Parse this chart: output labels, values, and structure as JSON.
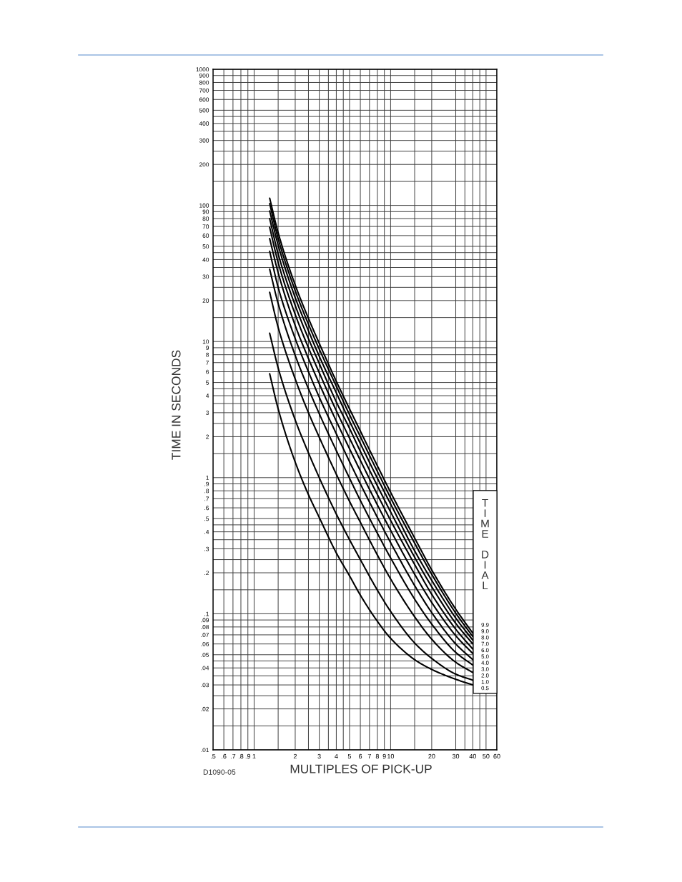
{
  "chart_data": {
    "type": "line",
    "xlabel": "MULTIPLES OF PICK-UP",
    "ylabel": "TIME IN SECONDS",
    "legend_title": "TIME DIAL",
    "legend": "bottom right",
    "log": "xy",
    "grid": true,
    "line_style": "solid",
    "xlim": [
      0.5,
      60
    ],
    "ylim": [
      0.01,
      1000
    ],
    "xticks": [
      {
        "value": 0.5,
        "label": ".5"
      },
      {
        "value": 0.6,
        "label": ".6"
      },
      {
        "value": 0.7,
        "label": ".7"
      },
      {
        "value": 0.8,
        "label": ".8"
      },
      {
        "value": 0.9,
        "label": ".9"
      },
      1,
      {
        "value": 1.5,
        "label": null
      },
      2,
      {
        "value": 2.5,
        "label": null
      },
      3,
      {
        "value": 3.5,
        "label": null
      },
      4,
      {
        "value": 4.5,
        "label": null
      },
      5,
      6,
      7,
      8,
      9,
      10,
      {
        "value": 15,
        "label": null
      },
      20,
      30,
      {
        "value": 35,
        "label": null
      },
      40,
      {
        "value": 45,
        "label": null
      },
      50,
      60
    ],
    "yticks": [
      {
        "value": 0.01,
        "label": ".01"
      },
      {
        "value": 0.015,
        "label": null
      },
      {
        "value": 0.02,
        "label": ".02"
      },
      {
        "value": 0.025,
        "label": null
      },
      {
        "value": 0.03,
        "label": ".03"
      },
      {
        "value": 0.035,
        "label": null
      },
      {
        "value": 0.04,
        "label": ".04"
      },
      {
        "value": 0.045,
        "label": null
      },
      {
        "value": 0.05,
        "label": ".05"
      },
      {
        "value": 0.06,
        "label": ".06"
      },
      {
        "value": 0.07,
        "label": ".07"
      },
      {
        "value": 0.08,
        "label": ".08"
      },
      {
        "value": 0.09,
        "label": ".09"
      },
      {
        "value": 0.1,
        "label": ".1"
      },
      {
        "value": 0.15,
        "label": null
      },
      {
        "value": 0.2,
        "label": ".2"
      },
      {
        "value": 0.25,
        "label": null
      },
      {
        "value": 0.3,
        "label": ".3"
      },
      {
        "value": 0.35,
        "label": null
      },
      {
        "value": 0.4,
        "label": ".4"
      },
      {
        "value": 0.45,
        "label": null
      },
      {
        "value": 0.5,
        "label": ".5"
      },
      {
        "value": 0.6,
        "label": ".6"
      },
      {
        "value": 0.7,
        "label": ".7"
      },
      {
        "value": 0.8,
        "label": ".8"
      },
      {
        "value": 0.9,
        "label": ".9"
      },
      1,
      {
        "value": 1.5,
        "label": null
      },
      2,
      {
        "value": 2.5,
        "label": null
      },
      3,
      {
        "value": 3.5,
        "label": null
      },
      4,
      {
        "value": 4.5,
        "label": null
      },
      5,
      6,
      7,
      8,
      9,
      10,
      {
        "value": 15,
        "label": null
      },
      20,
      {
        "value": 25,
        "label": null
      },
      30,
      {
        "value": 35,
        "label": null
      },
      40,
      {
        "value": 45,
        "label": null
      },
      50,
      60,
      70,
      80,
      90,
      100,
      {
        "value": 150,
        "label": null
      },
      200,
      {
        "value": 250,
        "label": null
      },
      300,
      {
        "value": 350,
        "label": null
      },
      400,
      {
        "value": 450,
        "label": null
      },
      500,
      600,
      700,
      800,
      900,
      1000
    ],
    "x": [
      1.3,
      1.5,
      2,
      2.5,
      3,
      4,
      5,
      6,
      8,
      10,
      15,
      20,
      30,
      40
    ],
    "series": [
      {
        "name": "9.9",
        "color": "#000000",
        "values": [
          113,
          63,
          26,
          14.8,
          9.7,
          5.1,
          3.2,
          2.2,
          1.22,
          0.78,
          0.36,
          0.21,
          0.108,
          0.072
        ]
      },
      {
        "name": "9.0",
        "color": "#000000",
        "values": [
          103,
          57,
          23.6,
          13.4,
          8.8,
          4.7,
          2.9,
          2.0,
          1.11,
          0.71,
          0.33,
          0.195,
          0.101,
          0.068
        ]
      },
      {
        "name": "8.0",
        "color": "#000000",
        "values": [
          91,
          51,
          21,
          12,
          7.8,
          4.2,
          2.6,
          1.78,
          0.99,
          0.64,
          0.29,
          0.176,
          0.093,
          0.064
        ]
      },
      {
        "name": "7.0",
        "color": "#000000",
        "values": [
          80,
          44,
          18.4,
          10.5,
          6.9,
          3.6,
          2.3,
          1.56,
          0.87,
          0.56,
          0.26,
          0.158,
          0.085,
          0.06
        ]
      },
      {
        "name": "6.0",
        "color": "#000000",
        "values": [
          69,
          38,
          15.8,
          9.0,
          5.9,
          3.1,
          1.95,
          1.34,
          0.75,
          0.485,
          0.23,
          0.139,
          0.077,
          0.055
        ]
      },
      {
        "name": "5.0",
        "color": "#000000",
        "values": [
          57,
          32,
          13.1,
          7.5,
          4.9,
          2.6,
          1.63,
          1.12,
          0.63,
          0.41,
          0.195,
          0.121,
          0.069,
          0.051
        ]
      },
      {
        "name": "4.0",
        "color": "#000000",
        "values": [
          46,
          25,
          10.5,
          6.0,
          3.9,
          2.1,
          1.31,
          0.9,
          0.51,
          0.333,
          0.161,
          0.102,
          0.06,
          0.046
        ]
      },
      {
        "name": "3.0",
        "color": "#000000",
        "values": [
          34,
          19,
          7.9,
          4.5,
          2.95,
          1.58,
          0.99,
          0.68,
          0.39,
          0.257,
          0.128,
          0.084,
          0.052,
          0.042
        ]
      },
      {
        "name": "2.0",
        "color": "#000000",
        "values": [
          23,
          12.7,
          5.3,
          3.0,
          1.98,
          1.06,
          0.67,
          0.47,
          0.27,
          0.18,
          0.095,
          0.065,
          0.044,
          0.037
        ]
      },
      {
        "name": "1.0",
        "color": "#000000",
        "values": [
          11.5,
          6.4,
          2.65,
          1.52,
          1.0,
          0.54,
          0.35,
          0.25,
          0.149,
          0.104,
          0.061,
          0.047,
          0.036,
          0.0325
        ]
      },
      {
        "name": "0.5",
        "color": "#000000",
        "values": [
          5.8,
          3.2,
          1.3,
          0.75,
          0.51,
          0.28,
          0.19,
          0.137,
          0.088,
          0.066,
          0.046,
          0.039,
          0.033,
          0.03
        ]
      }
    ],
    "annotations": [
      "D1090-05"
    ]
  }
}
